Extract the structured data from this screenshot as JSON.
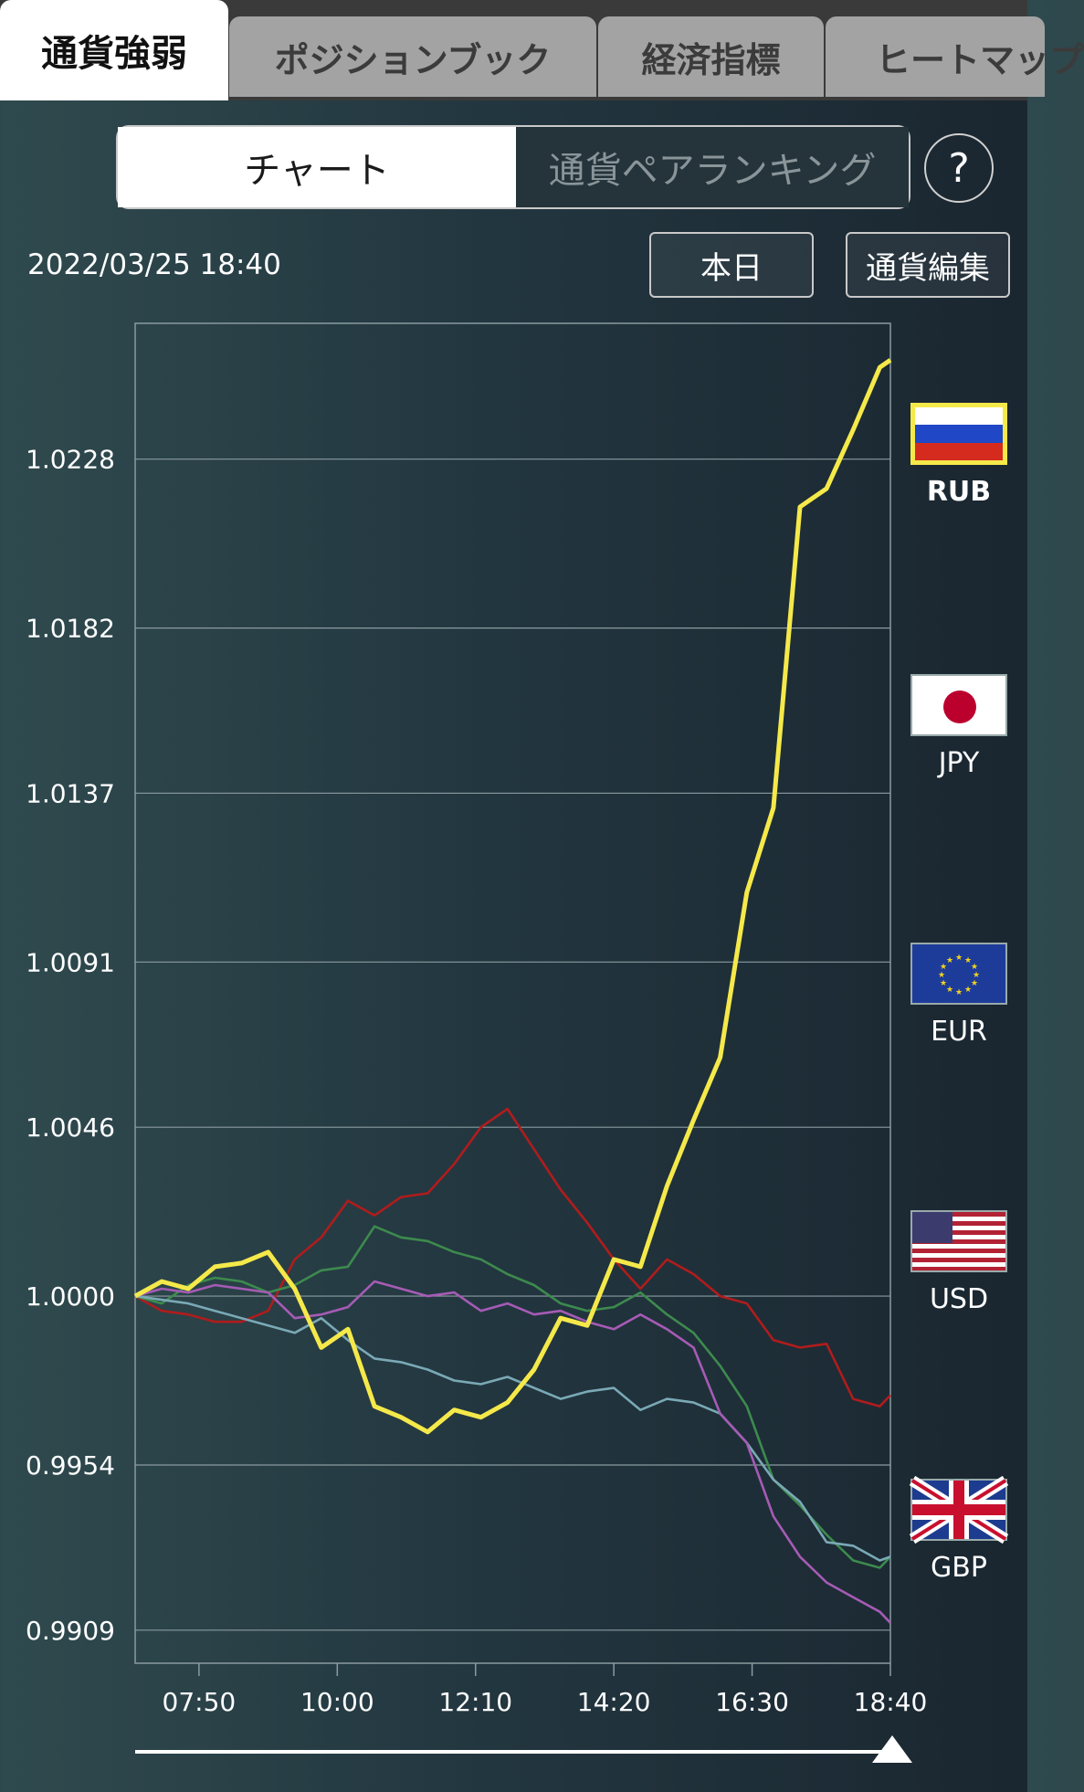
{
  "tabs": [
    {
      "label": "通貨強弱",
      "active": true
    },
    {
      "label": "ポジションブック",
      "active": false
    },
    {
      "label": "経済指標",
      "active": false
    },
    {
      "label": "ヒートマップ",
      "active": false
    }
  ],
  "segment": {
    "chart_label": "チャート",
    "ranking_label": "通貨ペアランキング",
    "help_label": "?"
  },
  "timestamp": "2022/03/25 18:40",
  "buttons": {
    "today": "本日",
    "edit_currency": "通貨編集"
  },
  "legend": [
    {
      "code": "RUB",
      "flag": "russia-flag-icon",
      "color": "#f5e94a",
      "selected": true
    },
    {
      "code": "JPY",
      "flag": "japan-flag-icon",
      "color": "#b01c1c",
      "selected": false
    },
    {
      "code": "EUR",
      "flag": "eu-flag-icon",
      "color": "#3d8a4e",
      "selected": false
    },
    {
      "code": "USD",
      "flag": "usa-flag-icon",
      "color": "#7aa9b6",
      "selected": false
    },
    {
      "code": "GBP",
      "flag": "uk-flag-icon",
      "color": "#a65bb5",
      "selected": false
    }
  ],
  "chart_data": {
    "type": "line",
    "title": "",
    "xlabel": "",
    "ylabel": "",
    "x_ticks": [
      "07:50",
      "10:00",
      "12:10",
      "14:20",
      "16:30",
      "18:40"
    ],
    "y_ticks": [
      "1.0228",
      "1.0182",
      "1.0137",
      "1.0091",
      "1.0046",
      "1.0000",
      "0.9954",
      "0.9909"
    ],
    "ylim": [
      0.99,
      1.0265
    ],
    "x": [
      "06:50",
      "07:15",
      "07:40",
      "08:05",
      "08:30",
      "08:55",
      "09:20",
      "09:45",
      "10:10",
      "10:35",
      "11:00",
      "11:25",
      "11:50",
      "12:15",
      "12:40",
      "13:05",
      "13:30",
      "13:55",
      "14:20",
      "14:45",
      "15:10",
      "15:35",
      "16:00",
      "16:25",
      "16:50",
      "17:15",
      "17:40",
      "18:05",
      "18:30",
      "18:40"
    ],
    "series": [
      {
        "name": "RUB",
        "color": "#f5e94a",
        "values": [
          1.0,
          1.0004,
          1.0002,
          1.0008,
          1.0009,
          1.0012,
          1.0002,
          0.9986,
          0.9991,
          0.997,
          0.9967,
          0.9963,
          0.9969,
          0.9967,
          0.9971,
          0.998,
          0.9994,
          0.9992,
          1.001,
          1.0008,
          1.003,
          1.0048,
          1.0065,
          1.011,
          1.0133,
          1.0215,
          1.022,
          1.0236,
          1.0253,
          1.0255
        ]
      },
      {
        "name": "JPY",
        "color": "#b01c1c",
        "values": [
          1.0,
          0.9996,
          0.9995,
          0.9993,
          0.9993,
          0.9996,
          1.001,
          1.0016,
          1.0026,
          1.0022,
          1.0027,
          1.0028,
          1.0036,
          1.0046,
          1.0051,
          1.004,
          1.0029,
          1.002,
          1.001,
          1.0002,
          1.001,
          1.0006,
          1.0,
          0.9998,
          0.9988,
          0.9986,
          0.9987,
          0.9972,
          0.997,
          0.9973
        ]
      },
      {
        "name": "EUR",
        "color": "#3d8a4e",
        "values": [
          1.0,
          0.9998,
          1.0003,
          1.0005,
          1.0004,
          1.0001,
          1.0003,
          1.0007,
          1.0008,
          1.0019,
          1.0016,
          1.0015,
          1.0012,
          1.001,
          1.0006,
          1.0003,
          0.9998,
          0.9996,
          0.9997,
          1.0001,
          0.9995,
          0.999,
          0.9981,
          0.997,
          0.995,
          0.9943,
          0.9935,
          0.9928,
          0.9926,
          0.9929
        ]
      },
      {
        "name": "USD",
        "color": "#7aa9b6",
        "values": [
          1.0,
          0.9999,
          0.9998,
          0.9996,
          0.9994,
          0.9992,
          0.999,
          0.9994,
          0.9988,
          0.9983,
          0.9982,
          0.998,
          0.9977,
          0.9976,
          0.9978,
          0.9975,
          0.9972,
          0.9974,
          0.9975,
          0.9969,
          0.9972,
          0.9971,
          0.9968,
          0.996,
          0.995,
          0.9944,
          0.9933,
          0.9932,
          0.9928,
          0.9929
        ]
      },
      {
        "name": "GBP",
        "color": "#a65bb5",
        "values": [
          1.0,
          1.0002,
          1.0001,
          1.0003,
          1.0002,
          1.0001,
          0.9994,
          0.9995,
          0.9997,
          1.0004,
          1.0002,
          1.0,
          1.0001,
          0.9996,
          0.9998,
          0.9995,
          0.9996,
          0.9993,
          0.9991,
          0.9995,
          0.9991,
          0.9986,
          0.9968,
          0.996,
          0.994,
          0.9929,
          0.9922,
          0.9918,
          0.9914,
          0.9911
        ]
      }
    ]
  }
}
